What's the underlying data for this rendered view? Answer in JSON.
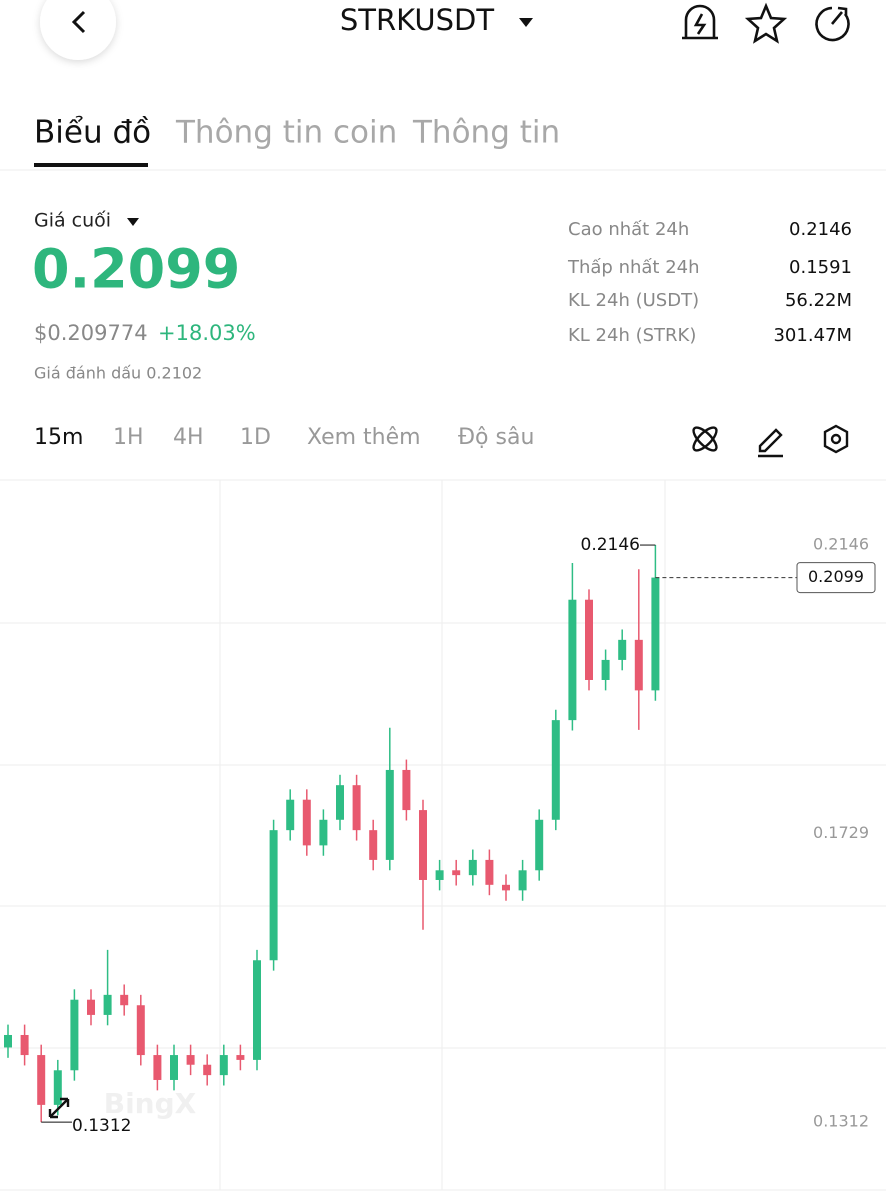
{
  "header": {
    "title": "STRKUSDT"
  },
  "tabs": [
    "Biểu đồ",
    "Thông tin coin",
    "Thông tin"
  ],
  "price": {
    "label": "Giá cuối",
    "last": "0.2099",
    "usd": "$0.209774",
    "change": "+18.03%",
    "mark": "Giá đánh dấu 0.2102"
  },
  "stats": [
    {
      "label": "Cao nhất 24h",
      "value": "0.2146"
    },
    {
      "label": "Thấp nhất 24h",
      "value": "0.1591"
    },
    {
      "label": "KL 24h (USDT)",
      "value": "56.22M"
    },
    {
      "label": "KL 24h (STRK)",
      "value": "301.47M"
    }
  ],
  "timeframes": [
    "15m",
    "1H",
    "4H",
    "1D",
    "Xem thêm",
    "Độ sâu"
  ],
  "chart_data": {
    "type": "candlestick",
    "open": [
      0.142,
      0.1438,
      0.1409,
      0.1337,
      0.1387,
      0.1489,
      0.1467,
      0.1496,
      0.1481,
      0.1409,
      0.1373,
      0.1409,
      0.1395,
      0.138,
      0.1409,
      0.1402,
      0.1546,
      0.1734,
      0.1778,
      0.1712,
      0.1749,
      0.1799,
      0.1734,
      0.1691,
      0.1821,
      0.1763,
      0.1662,
      0.1676,
      0.1669,
      0.1691,
      0.1655,
      0.1647,
      0.1676,
      0.1749,
      0.1893,
      0.2067,
      0.1951,
      0.198,
      0.2009,
      0.1936
    ],
    "high": [
      0.1453,
      0.1453,
      0.1424,
      0.1402,
      0.1504,
      0.1504,
      0.1561,
      0.1511,
      0.1496,
      0.1424,
      0.1424,
      0.1424,
      0.141,
      0.1424,
      0.1424,
      0.1561,
      0.1749,
      0.1793,
      0.1793,
      0.1764,
      0.1814,
      0.1814,
      0.1749,
      0.1882,
      0.1836,
      0.1778,
      0.1691,
      0.1691,
      0.1706,
      0.1706,
      0.167,
      0.1691,
      0.1764,
      0.1908,
      0.212,
      0.2082,
      0.1995,
      0.2024,
      0.2111,
      0.2146
    ],
    "low": [
      0.1405,
      0.1394,
      0.1312,
      0.1322,
      0.1372,
      0.1452,
      0.1452,
      0.1466,
      0.1394,
      0.1358,
      0.1358,
      0.138,
      0.1365,
      0.1365,
      0.1387,
      0.1387,
      0.1531,
      0.1719,
      0.1697,
      0.1697,
      0.1734,
      0.1719,
      0.1676,
      0.1676,
      0.1748,
      0.159,
      0.1647,
      0.1654,
      0.1654,
      0.164,
      0.1632,
      0.1632,
      0.1661,
      0.1734,
      0.1878,
      0.1936,
      0.1936,
      0.1965,
      0.1879,
      0.1921
    ],
    "close": [
      0.1438,
      0.1409,
      0.1337,
      0.1387,
      0.1489,
      0.1467,
      0.1496,
      0.1481,
      0.1409,
      0.1373,
      0.1409,
      0.1395,
      0.138,
      0.1409,
      0.1402,
      0.1546,
      0.1734,
      0.1778,
      0.1712,
      0.1749,
      0.1799,
      0.1734,
      0.1691,
      0.1821,
      0.1763,
      0.1662,
      0.1676,
      0.1669,
      0.1691,
      0.1655,
      0.1647,
      0.1676,
      0.1749,
      0.1893,
      0.2067,
      0.1951,
      0.198,
      0.2009,
      0.1936,
      0.2099
    ],
    "up_color": "#2ebd85",
    "down_color": "#e8596f",
    "ylim": [
      0.1214,
      0.224
    ],
    "yticks": [
      0.1312,
      0.1729,
      0.2146
    ],
    "last_price": 0.2099,
    "high_label": 0.2146,
    "low_label": 0.1312,
    "watermark": "BingX"
  }
}
